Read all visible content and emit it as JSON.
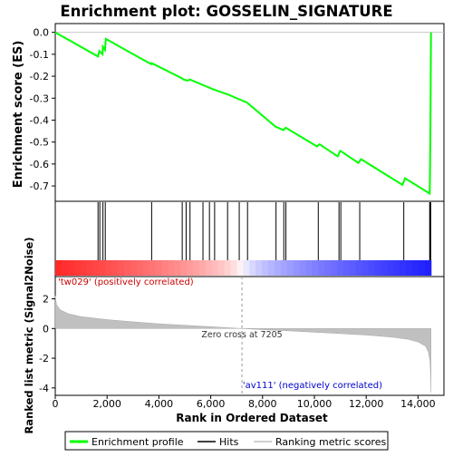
{
  "chart_data": {
    "type": "line",
    "title": "Enrichment plot: GOSSELIN_SIGNATURE",
    "es_panel": {
      "ylabel": "Enrichment score (ES)",
      "ylim": [
        -0.77,
        0.04
      ],
      "yticks": [
        0.0,
        -0.1,
        -0.2,
        -0.3,
        -0.4,
        -0.5,
        -0.6,
        -0.7
      ],
      "ytick_labels": [
        "0.0",
        "-0.1",
        "-0.2",
        "-0.3",
        "-0.4",
        "-0.5",
        "-0.6",
        "-0.7"
      ],
      "profile_color": "#00ff00",
      "profile": [
        [
          0,
          0.0
        ],
        [
          1650,
          -0.11
        ],
        [
          1700,
          -0.085
        ],
        [
          1820,
          -0.1
        ],
        [
          1840,
          -0.065
        ],
        [
          1920,
          -0.08
        ],
        [
          1950,
          -0.03
        ],
        [
          3700,
          -0.145
        ],
        [
          3720,
          -0.14
        ],
        [
          4900,
          -0.21
        ],
        [
          4950,
          -0.215
        ],
        [
          5100,
          -0.22
        ],
        [
          5200,
          -0.215
        ],
        [
          5700,
          -0.24
        ],
        [
          5800,
          -0.245
        ],
        [
          6100,
          -0.26
        ],
        [
          6700,
          -0.285
        ],
        [
          7100,
          -0.305
        ],
        [
          7400,
          -0.32
        ],
        [
          8500,
          -0.43
        ],
        [
          8800,
          -0.445
        ],
        [
          8900,
          -0.435
        ],
        [
          10100,
          -0.52
        ],
        [
          10200,
          -0.51
        ],
        [
          10900,
          -0.565
        ],
        [
          11000,
          -0.54
        ],
        [
          11700,
          -0.595
        ],
        [
          11800,
          -0.578
        ],
        [
          13400,
          -0.695
        ],
        [
          13500,
          -0.665
        ],
        [
          14450,
          -0.735
        ],
        [
          14460,
          -0.65
        ],
        [
          14470,
          -0.55
        ],
        [
          14480,
          -0.42
        ],
        [
          14490,
          -0.22
        ],
        [
          14500,
          0.0
        ]
      ]
    },
    "hits_panel": {
      "hit_positions": [
        1650,
        1720,
        1840,
        1930,
        3720,
        4900,
        5050,
        5200,
        5700,
        5950,
        6150,
        6650,
        7100,
        7420,
        8520,
        8820,
        8900,
        10150,
        10950,
        11020,
        11750,
        13450,
        14450,
        14470,
        14490
      ]
    },
    "ranked_metric_panel": {
      "ylabel": "Ranked list metric (Signal2Noise)",
      "ylim": [
        -4.5,
        3.5
      ],
      "yticks": [
        2,
        0,
        -2,
        -4
      ],
      "ytick_labels": [
        "2",
        "0",
        "-2",
        "-4"
      ],
      "fill_color": "#c0c0c0",
      "curve": [
        [
          0,
          2.2
        ],
        [
          50,
          1.6
        ],
        [
          200,
          1.25
        ],
        [
          500,
          1.0
        ],
        [
          1000,
          0.8
        ],
        [
          2000,
          0.6
        ],
        [
          3000,
          0.45
        ],
        [
          4000,
          0.32
        ],
        [
          5000,
          0.22
        ],
        [
          6000,
          0.12
        ],
        [
          7205,
          0.0
        ],
        [
          8000,
          -0.08
        ],
        [
          9000,
          -0.16
        ],
        [
          10000,
          -0.25
        ],
        [
          11000,
          -0.34
        ],
        [
          12000,
          -0.44
        ],
        [
          13000,
          -0.58
        ],
        [
          13600,
          -0.72
        ],
        [
          14000,
          -0.9
        ],
        [
          14300,
          -1.2
        ],
        [
          14400,
          -1.6
        ],
        [
          14460,
          -2.2
        ],
        [
          14490,
          -3.2
        ],
        [
          14500,
          -4.3
        ]
      ],
      "zero_cross_label": "Zero cross at 7205",
      "zero_cross": 7205,
      "positive_label": "'tw029' (positively correlated)",
      "negative_label": "'av111' (negatively correlated)"
    },
    "x_axis": {
      "xlabel": "Rank in Ordered Dataset",
      "xlim": [
        0,
        15000
      ],
      "xticks": [
        0,
        2000,
        4000,
        6000,
        8000,
        10000,
        12000,
        14000
      ],
      "xtick_labels": [
        "0",
        "2,000",
        "4,000",
        "6,000",
        "8,000",
        "10,000",
        "12,000",
        "14,000"
      ]
    },
    "legend": {
      "placement": "bottom",
      "entries": [
        {
          "label": "Enrichment profile",
          "color": "#00ff00"
        },
        {
          "label": "Hits",
          "color": "#000000"
        },
        {
          "label": "Ranking metric scores",
          "color": "#c0c0c0"
        }
      ]
    }
  }
}
